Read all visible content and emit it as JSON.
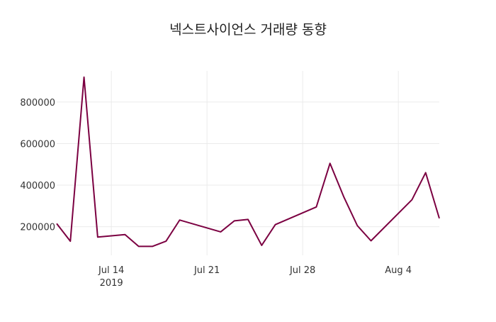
{
  "chart_data": {
    "type": "line",
    "title": "넥스트사이언스 거래량 동향",
    "xlabel": "",
    "ylabel": "",
    "x": [
      "2019-07-10",
      "2019-07-11",
      "2019-07-12",
      "2019-07-13",
      "2019-07-14",
      "2019-07-15",
      "2019-07-16",
      "2019-07-17",
      "2019-07-18",
      "2019-07-19",
      "2019-07-20",
      "2019-07-21",
      "2019-07-22",
      "2019-07-23",
      "2019-07-24",
      "2019-07-25",
      "2019-07-26",
      "2019-07-27",
      "2019-07-28",
      "2019-07-29",
      "2019-07-30",
      "2019-07-31",
      "2019-08-01",
      "2019-08-02",
      "2019-08-03",
      "2019-08-04",
      "2019-08-05",
      "2019-08-06",
      "2019-08-07"
    ],
    "series": [
      {
        "color": "#7b0041",
        "values": [
          215000,
          130000,
          920000,
          150000,
          null,
          162000,
          105000,
          105000,
          130000,
          232000,
          null,
          null,
          175000,
          228000,
          235000,
          110000,
          210000,
          null,
          null,
          295000,
          505000,
          345000,
          205000,
          132000,
          null,
          null,
          330000,
          460000,
          240000
        ]
      }
    ],
    "xticks": [
      {
        "date": "2019-07-14",
        "label": "Jul 14",
        "sublabel": "2019"
      },
      {
        "date": "2019-07-21",
        "label": "Jul 21",
        "sublabel": ""
      },
      {
        "date": "2019-07-28",
        "label": "Jul 28",
        "sublabel": ""
      },
      {
        "date": "2019-08-04",
        "label": "Aug 4",
        "sublabel": ""
      }
    ],
    "yticks": [
      200000,
      400000,
      600000,
      800000
    ],
    "xlim": [
      "2019-07-10",
      "2019-08-07"
    ],
    "ylim": [
      62000,
      950000
    ],
    "grid": true,
    "legend": "none"
  }
}
